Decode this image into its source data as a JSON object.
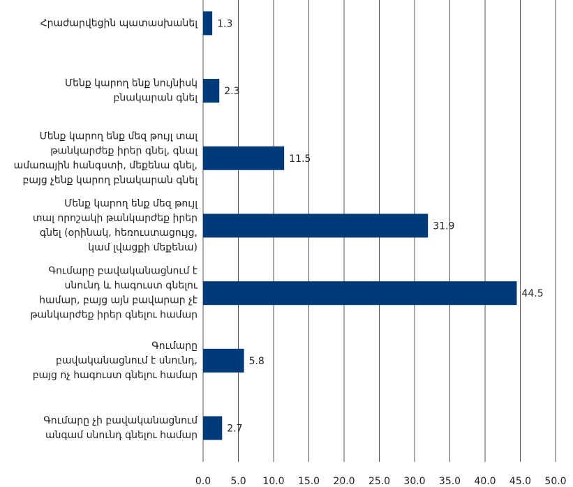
{
  "chart_data": {
    "type": "barh",
    "categories": [
      [
        "Հրաժարվեցին պատասխանել"
      ],
      [
        "Մենք կարող ենք նույնիսկ",
        "բնակարան գնել"
      ],
      [
        "Մենք կարող ենք մեզ թույլ տալ",
        "թանկարժեք իրեր գնել, գնալ",
        "ամառային հանգստի, մեքենա գնել,",
        "բայց չենք կարող բնակարան գնել"
      ],
      [
        "Մենք կարող ենք մեզ թույլ",
        "տալ որոշակի թանկարժեք իրեր",
        "գնել (օրինակ, հեռուստացույց,",
        "կամ լվացքի մեքենա)"
      ],
      [
        "Գումարը բավականացնում է",
        "սնունդ և հագուստ գնելու",
        "համար, բայց այն բավարար չէ",
        "թանկարժեք իրեր գնելու համար"
      ],
      [
        "Գումարը",
        "բավականացնում է սնունդ,",
        "բայց ոչ հագուստ գնելու համար"
      ],
      [
        "Գումարը չի բավականացնում",
        "անգամ սնունդ գնելու համար"
      ]
    ],
    "values": [
      1.3,
      2.3,
      11.5,
      31.9,
      44.5,
      5.8,
      2.7
    ],
    "color": "#003a78",
    "xlim": [
      0,
      50
    ],
    "xticks": [
      {
        "value": 0,
        "label": "0.0"
      },
      {
        "value": 5,
        "label": "5.0"
      },
      {
        "value": 10,
        "label": "10.0"
      },
      {
        "value": 15,
        "label": "15.0"
      },
      {
        "value": 20,
        "label": "20.0"
      },
      {
        "value": 25,
        "label": "25.0"
      },
      {
        "value": 30,
        "label": "30.0"
      },
      {
        "value": 35,
        "label": "35.0"
      },
      {
        "value": 40,
        "label": "40.0"
      },
      {
        "value": 45,
        "label": "45.0"
      },
      {
        "value": 50,
        "label": "50.0"
      }
    ],
    "grid": true
  }
}
